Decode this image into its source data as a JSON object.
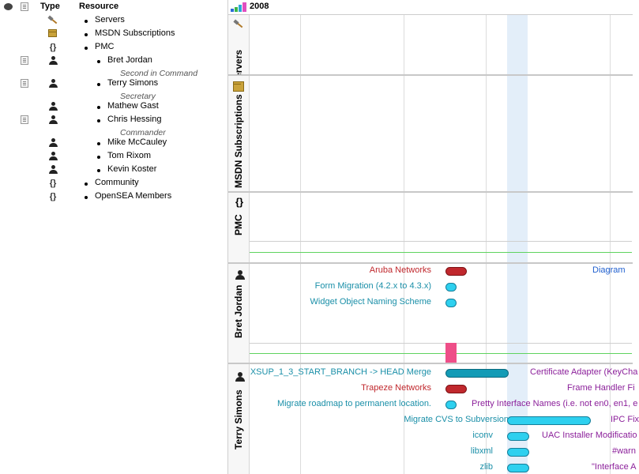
{
  "columns": {
    "type": "Type",
    "resource": "Resource"
  },
  "resources": [
    {
      "name": "Servers",
      "icon": "hammer-icon"
    },
    {
      "name": "MSDN Subscriptions",
      "icon": "package-icon"
    },
    {
      "name": "PMC",
      "icon": "braces-icon",
      "glyph": "{}"
    },
    {
      "name": "Bret Jordan",
      "icon": "person-icon",
      "role": "Second in Command",
      "note": true
    },
    {
      "name": "Terry Simons",
      "icon": "person-icon",
      "role": "Secretary",
      "note": true
    },
    {
      "name": "Mathew Gast",
      "icon": "person-icon"
    },
    {
      "name": "Chris Hessing",
      "icon": "person-icon",
      "role": "Commander",
      "note": true
    },
    {
      "name": "Mike McCauley",
      "icon": "person-icon"
    },
    {
      "name": "Tom Rixom",
      "icon": "person-icon"
    },
    {
      "name": "Kevin Koster",
      "icon": "person-icon"
    },
    {
      "name": "Community",
      "icon": "braces-icon",
      "glyph": "{}"
    },
    {
      "name": "OpenSEA Members",
      "icon": "braces-icon",
      "glyph": "{}"
    }
  ],
  "timeline": {
    "year": "2008",
    "sections": {
      "servers": "Servers",
      "msdn": "MSDN Subscriptions",
      "pmc": "PMC",
      "bret": "Bret Jordan",
      "terry": "Terry Simons"
    },
    "bret_tasks": {
      "aruba": "Aruba Networks",
      "form": "Form Migration (4.2.x to 4.3.x)",
      "widget": "Widget Object Naming Scheme",
      "diagram": "Diagram"
    },
    "terry_tasks": {
      "xsup": "XSUP_1_3_START_BRANCH -> HEAD Merge",
      "cert": "Certificate Adapter (KeyCha",
      "trapeze": "Trapeze Networks",
      "frame": "Frame Handler Fi",
      "roadmap": "Migrate roadmap to permanent location.",
      "pretty": "Pretty Interface Names (i.e. not en0, en1, e",
      "cvs": "Migrate CVS to Subversion",
      "ipc": "IPC Fix",
      "iconv": "iconv",
      "uac": "UAC Installer Modificatio",
      "libxml": "libxml",
      "warn": "#warn",
      "zlib": "zlib",
      "iface": "\"Interface A"
    }
  },
  "colors": {
    "red_bar": "#c0282d",
    "cyan_bar": "#2ed0ef",
    "teal_bar": "#139bb6",
    "milestone": "#ee4f88",
    "today_band": "#e3eef9",
    "label_red": "#c0282d",
    "label_teal": "#1a8fa8",
    "label_purple": "#8b1f9a",
    "label_blue": "#1f5fcf"
  }
}
